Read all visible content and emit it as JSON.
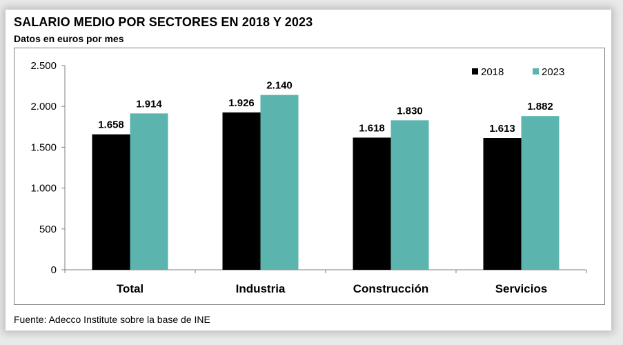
{
  "header": {
    "title": "SALARIO MEDIO POR SECTORES EN 2018 Y 2023",
    "subtitle": "Datos en euros por mes"
  },
  "footer": {
    "source": "Fuente: Adecco Institute sobre la base de INE"
  },
  "colors": {
    "series_2018": "#000000",
    "series_2023": "#5bb5ae"
  },
  "chart_data": {
    "type": "bar",
    "categories": [
      "Total",
      "Industria",
      "Construcción",
      "Servicios"
    ],
    "series": [
      {
        "name": "2018",
        "values": [
          1658,
          1926,
          1618,
          1613
        ],
        "labels": [
          "1.658",
          "1.926",
          "1.618",
          "1.613"
        ]
      },
      {
        "name": "2023",
        "values": [
          1914,
          2140,
          1830,
          1882
        ],
        "labels": [
          "1.914",
          "2.140",
          "1.830",
          "1.882"
        ]
      }
    ],
    "yticks": [
      0,
      500,
      1000,
      1500,
      2000,
      2500
    ],
    "ytick_labels": [
      "0",
      "500",
      "1.000",
      "1.500",
      "2.000",
      "2.500"
    ],
    "ylim": [
      0,
      2500
    ],
    "grid": false,
    "legend": "top-right"
  }
}
